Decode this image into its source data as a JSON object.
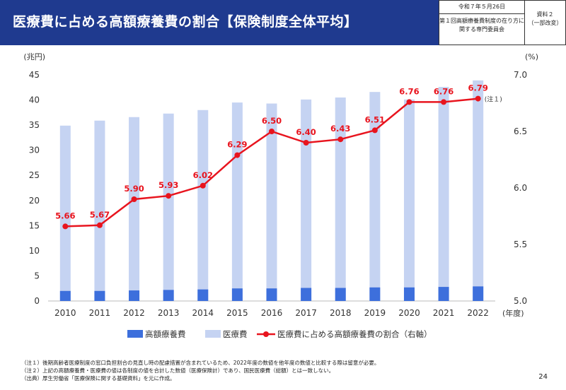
{
  "header": {
    "title": "医療費に占める高額療養費の割合【保険制度全体平均】",
    "date": "令和７年５月26日",
    "committee": "第１回高額療養費制度の在り方に関する専門委員会",
    "doc_label": "資料２",
    "doc_sub": "（一部改変）"
  },
  "chart_data": {
    "type": "bar",
    "categories": [
      "2010",
      "2011",
      "2012",
      "2013",
      "2014",
      "2015",
      "2016",
      "2017",
      "2018",
      "2019",
      "2020",
      "2021",
      "2022"
    ],
    "x_unit": "(年度)",
    "left_axis": {
      "unit": "(兆円)",
      "ylim": [
        0,
        45
      ],
      "ticks": [
        0,
        5,
        10,
        15,
        20,
        25,
        30,
        35,
        40,
        45
      ]
    },
    "right_axis": {
      "unit": "(%)",
      "ylim": [
        5.0,
        7.0
      ],
      "ticks": [
        "5.0",
        "5.5",
        "6.0",
        "6.5",
        "7.0"
      ]
    },
    "series": [
      {
        "name": "高額療養費",
        "kind": "bar",
        "color": "#3d6fdc",
        "values": [
          2.0,
          2.0,
          2.1,
          2.2,
          2.3,
          2.5,
          2.5,
          2.6,
          2.6,
          2.7,
          2.7,
          2.8,
          2.9
        ]
      },
      {
        "name": "医療費",
        "kind": "bar",
        "color": "#c5d3f2",
        "values": [
          34.9,
          35.9,
          36.6,
          37.3,
          38.0,
          39.5,
          39.3,
          40.1,
          40.5,
          41.6,
          40.1,
          42.6,
          43.9
        ]
      },
      {
        "name": "医療費に占める高額療養費の割合（右軸）",
        "kind": "line",
        "axis": "right",
        "color": "#e8141e",
        "values": [
          5.66,
          5.67,
          5.9,
          5.93,
          6.02,
          6.29,
          6.5,
          6.4,
          6.43,
          6.51,
          6.76,
          6.76,
          6.79
        ],
        "labels": [
          "5.66",
          "5.67",
          "5.90",
          "5.93",
          "6.02",
          "6.29",
          "6.50",
          "6.40",
          "6.43",
          "6.51",
          "6.76",
          "6.76",
          "6.79"
        ]
      }
    ],
    "annotation": "(注１)",
    "legend_position": "bottom"
  },
  "notes": [
    "（注１）後期高齢者医療制度の窓口負担割合の見直し時の配慮措置が含まれているため、2022年度の数値を他年度の数値と比較する際は留意が必要。",
    "（注２）上記の高額療養費・医療費の値は各制度の値を合計した数値（医療保険計）であり、国民医療費（総額）とは一致しない。",
    "（出典）厚生労働省「医療保険に関する基礎資料」を元に作成。"
  ],
  "page_number": "24"
}
